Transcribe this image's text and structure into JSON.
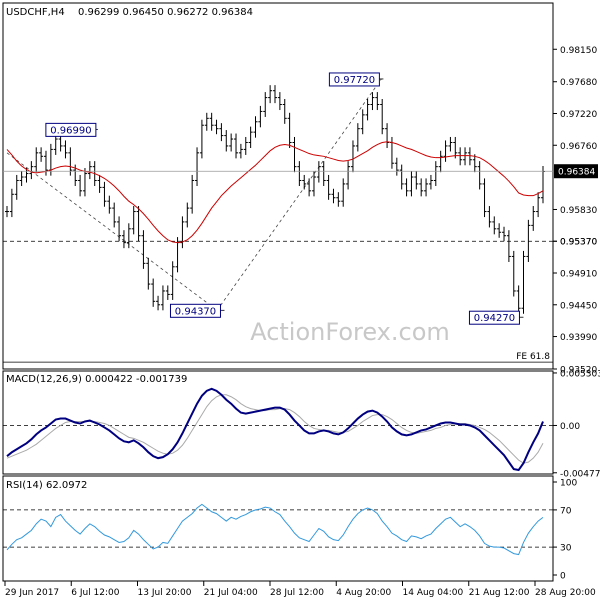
{
  "chart_data": {
    "type": "candlestick",
    "symbol_label": "USDCHF,H4",
    "ohlc_label": "0.96299 0.96450 0.96272 0.96384",
    "x_ticks": [
      "29 Jun 2017",
      "6 Jul 12:00",
      "13 Jul 20:00",
      "21 Jul 04:00",
      "28 Jul 12:00",
      "4 Aug 20:00",
      "14 Aug 04:00",
      "21 Aug 12:00",
      "28 Aug 20:00"
    ],
    "price_panel": {
      "ylim": [
        0.9352,
        0.9882
      ],
      "y_ticks": [
        "0.98150",
        "0.97680",
        "0.97220",
        "0.96760",
        "0.96384",
        "0.95830",
        "0.95370",
        "0.94910",
        "0.94450",
        "0.93990",
        "0.93520"
      ],
      "current_price": 0.96384,
      "current_price_label": "0.96384",
      "bar_range": [
        0,
        199
      ],
      "closes": [
        0.958,
        0.9605,
        0.9625,
        0.963,
        0.9635,
        0.9645,
        0.9665,
        0.966,
        0.964,
        0.967,
        0.9685,
        0.9675,
        0.9665,
        0.964,
        0.9625,
        0.961,
        0.9635,
        0.9645,
        0.9625,
        0.9615,
        0.9595,
        0.9585,
        0.9565,
        0.9545,
        0.9535,
        0.9555,
        0.958,
        0.9545,
        0.9505,
        0.9475,
        0.945,
        0.9445,
        0.9465,
        0.946,
        0.95,
        0.9535,
        0.9565,
        0.9585,
        0.9625,
        0.9665,
        0.9705,
        0.9715,
        0.9705,
        0.97,
        0.969,
        0.9675,
        0.9685,
        0.9665,
        0.967,
        0.968,
        0.9695,
        0.971,
        0.9725,
        0.9745,
        0.9755,
        0.9745,
        0.9735,
        0.9715,
        0.968,
        0.9645,
        0.9625,
        0.962,
        0.961,
        0.963,
        0.9645,
        0.9625,
        0.9605,
        0.96,
        0.9595,
        0.962,
        0.9645,
        0.9675,
        0.97,
        0.972,
        0.9735,
        0.9745,
        0.9735,
        0.97,
        0.968,
        0.965,
        0.964,
        0.962,
        0.961,
        0.963,
        0.962,
        0.961,
        0.962,
        0.9625,
        0.9645,
        0.966,
        0.9675,
        0.968,
        0.9665,
        0.9655,
        0.9665,
        0.9655,
        0.9645,
        0.962,
        0.958,
        0.9565,
        0.9555,
        0.955,
        0.9545,
        0.9515,
        0.9465,
        0.944,
        0.9515,
        0.956,
        0.958,
        0.96,
        0.9638
      ],
      "ma": [
        0.967,
        0.9662,
        0.9653,
        0.9646,
        0.9641,
        0.9637,
        0.9636,
        0.9637,
        0.9638,
        0.964,
        0.9643,
        0.9645,
        0.9646,
        0.9645,
        0.9643,
        0.964,
        0.9638,
        0.9637,
        0.9635,
        0.9632,
        0.9628,
        0.9623,
        0.9617,
        0.961,
        0.9602,
        0.9595,
        0.959,
        0.9584,
        0.9577,
        0.9569,
        0.956,
        0.9552,
        0.9545,
        0.9539,
        0.9536,
        0.9535,
        0.9536,
        0.9539,
        0.9545,
        0.9553,
        0.9563,
        0.9574,
        0.9585,
        0.9594,
        0.9603,
        0.961,
        0.9617,
        0.9623,
        0.9629,
        0.9635,
        0.9641,
        0.9647,
        0.9654,
        0.9661,
        0.9668,
        0.9673,
        0.9676,
        0.9677,
        0.9676,
        0.9673,
        0.967,
        0.9667,
        0.9664,
        0.9662,
        0.9661,
        0.966,
        0.9658,
        0.9656,
        0.9654,
        0.9653,
        0.9654,
        0.9656,
        0.966,
        0.9664,
        0.9668,
        0.9673,
        0.9677,
        0.968,
        0.9681,
        0.968,
        0.9678,
        0.9675,
        0.9672,
        0.967,
        0.9667,
        0.9664,
        0.9661,
        0.9659,
        0.9658,
        0.9658,
        0.9659,
        0.966,
        0.9661,
        0.9661,
        0.9661,
        0.9661,
        0.966,
        0.9658,
        0.9654,
        0.9649,
        0.9643,
        0.9637,
        0.9631,
        0.9624,
        0.9616,
        0.9607,
        0.9604,
        0.9603,
        0.9603,
        0.9606,
        0.961
      ],
      "levels": [
        {
          "value": 0.9537,
          "label": "0.95370",
          "style": "dashed"
        },
        {
          "value": 0.9362,
          "label": "FE 61.8",
          "style": "solid"
        }
      ],
      "annotations": [
        {
          "label": "0.96990",
          "value": 0.9699,
          "bar": 33
        },
        {
          "label": "0.94370",
          "value": 0.9437,
          "bar": 80
        },
        {
          "label": "0.97720",
          "value": 0.9772,
          "bar": 139
        },
        {
          "label": "0.94270",
          "value": 0.9427,
          "bar": 191
        }
      ],
      "trendlines": [
        {
          "from": {
            "bar": 0,
            "value": 0.9665
          },
          "to": {
            "bar": 78,
            "value": 0.9437
          }
        },
        {
          "from": {
            "bar": 78,
            "value": 0.9437
          },
          "to": {
            "bar": 139,
            "value": 0.9772
          }
        }
      ],
      "watermark": "ActionForex.com"
    },
    "macd_panel": {
      "label": "MACD(12,26,9) 0.000422 -0.001739",
      "ylim": [
        -0.0049,
        0.0055
      ],
      "y_ticks": [
        "0.005303",
        "0.00",
        "-0.004777"
      ],
      "macd": [
        -0.0031,
        -0.0027,
        -0.0024,
        -0.0021,
        -0.0018,
        -0.0014,
        -0.0009,
        -0.0005,
        -0.0002,
        0.0002,
        0.0006,
        0.0007,
        0.0007,
        0.0005,
        0.0003,
        0.0002,
        0.0004,
        0.0005,
        0.0003,
        0.0001,
        -0.0002,
        -0.0005,
        -0.0009,
        -0.0013,
        -0.0016,
        -0.0017,
        -0.0015,
        -0.0018,
        -0.0022,
        -0.0027,
        -0.0031,
        -0.0033,
        -0.0032,
        -0.0029,
        -0.0024,
        -0.0017,
        -0.0008,
        0.0002,
        0.0012,
        0.0022,
        0.003,
        0.0035,
        0.0037,
        0.0035,
        0.0031,
        0.0026,
        0.0022,
        0.0017,
        0.0013,
        0.0012,
        0.0013,
        0.0014,
        0.0015,
        0.0016,
        0.0017,
        0.0018,
        0.0018,
        0.0016,
        0.0011,
        0.0005,
        0.0,
        -0.0005,
        -0.0008,
        -0.0008,
        -0.0006,
        -0.0005,
        -0.0006,
        -0.0008,
        -0.0009,
        -0.0007,
        -0.0003,
        0.0002,
        0.0007,
        0.0011,
        0.0014,
        0.0015,
        0.0013,
        0.0009,
        0.0004,
        -0.0002,
        -0.0006,
        -0.0009,
        -0.001,
        -0.0009,
        -0.0007,
        -0.0005,
        -0.0004,
        -0.0002,
        0.0,
        0.0002,
        0.0003,
        0.0003,
        0.0002,
        0.0001,
        0.0001,
        0.0,
        -0.0002,
        -0.0005,
        -0.001,
        -0.0015,
        -0.002,
        -0.0025,
        -0.003,
        -0.0037,
        -0.0044,
        -0.0045,
        -0.0038,
        -0.0027,
        -0.0017,
        -0.0008,
        0.0004
      ],
      "signal": [
        -0.0033,
        -0.0031,
        -0.0029,
        -0.0027,
        -0.0025,
        -0.0022,
        -0.0019,
        -0.0015,
        -0.0011,
        -0.0007,
        -0.0003,
        0.0,
        0.0003,
        0.0004,
        0.0004,
        0.0004,
        0.0004,
        0.0004,
        0.0004,
        0.0003,
        0.0002,
        0.0,
        -0.0003,
        -0.0006,
        -0.0009,
        -0.0012,
        -0.0013,
        -0.0015,
        -0.0017,
        -0.002,
        -0.0023,
        -0.0026,
        -0.0028,
        -0.0029,
        -0.0028,
        -0.0025,
        -0.002,
        -0.0013,
        -0.0005,
        0.0003,
        0.0011,
        0.0019,
        0.0025,
        0.0029,
        0.0031,
        0.0031,
        0.0029,
        0.0026,
        0.0022,
        0.0019,
        0.0017,
        0.0016,
        0.0015,
        0.0015,
        0.0016,
        0.0016,
        0.0017,
        0.0017,
        0.0016,
        0.0013,
        0.0009,
        0.0004,
        0.0,
        -0.0003,
        -0.0004,
        -0.0005,
        -0.0005,
        -0.0006,
        -0.0007,
        -0.0007,
        -0.0006,
        -0.0003,
        0.0,
        0.0004,
        0.0007,
        0.001,
        0.0011,
        0.0011,
        0.0009,
        0.0006,
        0.0002,
        -0.0002,
        -0.0005,
        -0.0007,
        -0.0008,
        -0.0007,
        -0.0006,
        -0.0005,
        -0.0003,
        -0.0002,
        0.0,
        0.0001,
        0.0002,
        0.0002,
        0.0002,
        0.0001,
        0.0,
        -0.0002,
        -0.0004,
        -0.0007,
        -0.0011,
        -0.0015,
        -0.002,
        -0.0025,
        -0.003,
        -0.0035,
        -0.0038,
        -0.0037,
        -0.0033,
        -0.0027,
        -0.0018
      ]
    },
    "rsi_panel": {
      "label": "RSI(14) 62.0972",
      "ylim": [
        0,
        100
      ],
      "y_ticks": [
        "100",
        "70",
        "30",
        "0"
      ],
      "levels": [
        70,
        30
      ],
      "values": [
        27,
        33,
        38,
        40,
        44,
        48,
        55,
        60,
        58,
        52,
        62,
        65,
        58,
        53,
        48,
        44,
        50,
        55,
        52,
        47,
        43,
        41,
        38,
        35,
        36,
        40,
        48,
        44,
        38,
        33,
        28,
        30,
        35,
        34,
        42,
        50,
        58,
        62,
        66,
        72,
        76,
        72,
        68,
        66,
        62,
        58,
        62,
        60,
        63,
        65,
        68,
        70,
        71,
        73,
        72,
        68,
        65,
        58,
        52,
        45,
        40,
        38,
        36,
        43,
        50,
        47,
        41,
        38,
        37,
        43,
        52,
        60,
        66,
        70,
        72,
        70,
        66,
        58,
        52,
        45,
        42,
        38,
        36,
        42,
        41,
        39,
        42,
        44,
        50,
        55,
        60,
        62,
        57,
        52,
        55,
        52,
        48,
        42,
        34,
        31,
        30,
        30,
        29,
        26,
        23,
        22,
        35,
        45,
        52,
        58,
        62
      ]
    }
  }
}
